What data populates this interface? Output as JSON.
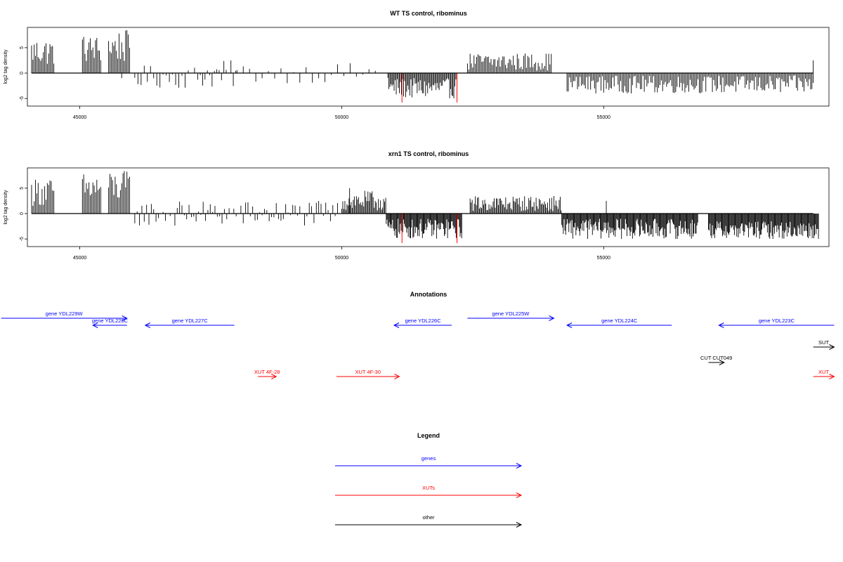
{
  "colors": {
    "gene": "#0000ff",
    "xut": "#ff0000",
    "other": "#000000",
    "highlight": "#ff0000",
    "bar": "#000000"
  },
  "chart_data": [
    {
      "type": "bar",
      "title": "WT TS control, ribominus",
      "ylabel": "log2 tag density",
      "xlim": [
        44000,
        59300
      ],
      "ylim": [
        -6.5,
        9
      ],
      "xticks": [
        45000,
        50000,
        55000
      ],
      "yticks": [
        -5,
        0,
        5
      ],
      "grid": false,
      "regions": [
        {
          "start": 44080,
          "end": 44520,
          "min": 1.5,
          "max": 7,
          "step": 25
        },
        {
          "start": 45050,
          "end": 45400,
          "min": 2,
          "max": 7.5,
          "step": 25
        },
        {
          "start": 45550,
          "end": 45950,
          "min": 2,
          "max": 8.5,
          "step": 25
        },
        {
          "start": 46050,
          "end": 47300,
          "min": -3,
          "max": 1.5,
          "step": 60
        },
        {
          "start": 47300,
          "end": 48000,
          "min": -3,
          "max": 2.5,
          "step": 45
        },
        {
          "start": 48000,
          "end": 50900,
          "min": -2,
          "max": 2,
          "step": 120
        },
        {
          "start": 50900,
          "end": 52200,
          "min": -5,
          "max": -1,
          "step": 20
        },
        {
          "start": 52400,
          "end": 54000,
          "min": 0.5,
          "max": 4,
          "step": 25
        },
        {
          "start": 54300,
          "end": 59000,
          "min": -4,
          "max": -0.5,
          "step": 25
        }
      ],
      "highlights": [
        {
          "x": 51150,
          "y": -5.8
        },
        {
          "x": 52200,
          "y": -5.8
        }
      ],
      "extra_bars": [
        {
          "x": 45800,
          "y": -1
        },
        {
          "x": 59000,
          "y": 2.5
        }
      ]
    },
    {
      "type": "bar",
      "title": "xrn1 TS control, ribominus",
      "ylabel": "log2 tag density",
      "xlim": [
        44000,
        59300
      ],
      "ylim": [
        -6.5,
        9
      ],
      "xticks": [
        45000,
        50000,
        55000
      ],
      "yticks": [
        -5,
        0,
        5
      ],
      "grid": false,
      "regions": [
        {
          "start": 44080,
          "end": 44520,
          "min": 1.5,
          "max": 7,
          "step": 25
        },
        {
          "start": 45050,
          "end": 45400,
          "min": 2,
          "max": 8,
          "step": 25
        },
        {
          "start": 45550,
          "end": 45950,
          "min": 2,
          "max": 8.5,
          "step": 25
        },
        {
          "start": 46050,
          "end": 50000,
          "min": -2.5,
          "max": 2.5,
          "step": 45
        },
        {
          "start": 50000,
          "end": 50850,
          "min": 0.5,
          "max": 4.5,
          "step": 20
        },
        {
          "start": 50850,
          "end": 52300,
          "min": -5,
          "max": -1,
          "step": 15
        },
        {
          "start": 52450,
          "end": 54200,
          "min": 0.5,
          "max": 3.5,
          "step": 20
        },
        {
          "start": 54200,
          "end": 56800,
          "min": -5,
          "max": -1,
          "step": 15
        },
        {
          "start": 57000,
          "end": 59100,
          "min": -5,
          "max": -1.5,
          "step": 15
        }
      ],
      "highlights": [
        {
          "x": 51150,
          "y": -5.8
        },
        {
          "x": 52200,
          "y": -5.8
        }
      ],
      "extra_bars": [
        {
          "x": 50150,
          "y": 5
        },
        {
          "x": 55050,
          "y": 2.5
        }
      ]
    }
  ],
  "annotations": {
    "title": "Annotations",
    "items": [
      {
        "label": "gene YDL229W",
        "kind": "gene",
        "start": 43500,
        "end": 45900,
        "strand": "+",
        "row": 0
      },
      {
        "label": "gene YDL228C",
        "kind": "gene",
        "start": 45250,
        "end": 45900,
        "strand": "-",
        "row": 1
      },
      {
        "label": "gene YDL227C",
        "kind": "gene",
        "start": 46250,
        "end": 47950,
        "strand": "-",
        "row": 1
      },
      {
        "label": "gene YDL226C",
        "kind": "gene",
        "start": 51000,
        "end": 52100,
        "strand": "-",
        "row": 1
      },
      {
        "label": "gene YDL225W",
        "kind": "gene",
        "start": 52400,
        "end": 54050,
        "strand": "+",
        "row": 0
      },
      {
        "label": "gene YDL224C",
        "kind": "gene",
        "start": 54300,
        "end": 56300,
        "strand": "-",
        "row": 1
      },
      {
        "label": "gene YDL223C",
        "kind": "gene",
        "start": 57200,
        "end": 59400,
        "strand": "-",
        "row": 1
      },
      {
        "label": "SUT",
        "kind": "other",
        "start": 59000,
        "end": 59400,
        "strand": "+",
        "row": 3
      },
      {
        "label": "CUT CUT049",
        "kind": "other",
        "start": 57000,
        "end": 57300,
        "strand": "+",
        "row": 4
      },
      {
        "label": "XUT 4F-28",
        "kind": "xut",
        "start": 48400,
        "end": 48750,
        "strand": "+",
        "row": 5
      },
      {
        "label": "XUT 4F-30",
        "kind": "xut",
        "start": 49900,
        "end": 51100,
        "strand": "+",
        "row": 5
      },
      {
        "label": "XUT",
        "kind": "xut",
        "start": 59000,
        "end": 59400,
        "strand": "+",
        "row": 5
      }
    ]
  },
  "legend": {
    "title": "Legend",
    "items": [
      {
        "label": "genes",
        "kind": "gene"
      },
      {
        "label": "XUTs",
        "kind": "xut"
      },
      {
        "label": "other",
        "kind": "other"
      }
    ]
  }
}
